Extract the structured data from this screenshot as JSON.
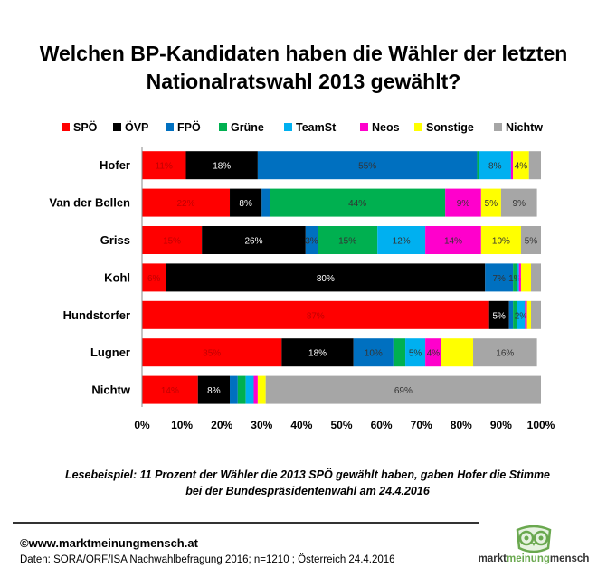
{
  "title_line1": "Welchen  BP-Kandidaten haben die Wähler der letzten",
  "title_line2": "Nationalratswahl 2013 gewählt?",
  "note_line1": "Lesebeispiel: 11 Prozent der Wähler die 2013 SPÖ gewählt haben, gaben  Hofer die Stimme",
  "note_line2": "bei der Bundespräsidentenwahl  am 24.4.2016",
  "footer": {
    "copyright": "©www.marktmeinungmensch.at",
    "source": "Daten: SORA/ORF/ISA Nachwahlbefragung 2016;  n=1210 ; Österreich 24.4.2016"
  },
  "logo": {
    "word1": "markt",
    "word2": "meinung",
    "word3": "mensch"
  },
  "colors": {
    "SPÖ": "#ff0000",
    "ÖVP": "#000000",
    "FPÖ": "#0070c0",
    "Grüne": "#00b050",
    "TeamSt": "#00b0f0",
    "Neos": "#ff00cc",
    "Sonstige": "#ffff00",
    "Nichtw": "#a6a6a6"
  },
  "chart_data": {
    "type": "bar",
    "orientation": "horizontal",
    "stacked": true,
    "title": "Welchen  BP-Kandidaten haben die Wähler der letzten Nationalratswahl 2013 gewählt?",
    "categories": [
      "Hofer",
      "Van der Bellen",
      "Griss",
      "Kohl",
      "Hundstorfer",
      "Lugner",
      "Nichtw"
    ],
    "x_ticks": [
      "0%",
      "10%",
      "20%",
      "30%",
      "40%",
      "50%",
      "60%",
      "70%",
      "80%",
      "90%",
      "100%"
    ],
    "xlim": [
      0,
      100
    ],
    "legend_position": "top",
    "series": [
      {
        "name": "SPÖ",
        "values": [
          11,
          22,
          15,
          6,
          87,
          35,
          14
        ],
        "labels": [
          "11%",
          "22%",
          "15%",
          "6%",
          "87%",
          "35%",
          "14%"
        ]
      },
      {
        "name": "ÖVP",
        "values": [
          18,
          8,
          26,
          80,
          5,
          18,
          8
        ],
        "labels": [
          "18%",
          "8%",
          "26%",
          "80%",
          "5%",
          "18%",
          "8%"
        ]
      },
      {
        "name": "FPÖ",
        "values": [
          55,
          2,
          3,
          7,
          1,
          10,
          2
        ],
        "labels": [
          "55%",
          "",
          "3%",
          "7%",
          "",
          "10%",
          ""
        ]
      },
      {
        "name": "Grüne",
        "values": [
          0.5,
          44,
          15,
          1,
          1,
          3,
          2
        ],
        "labels": [
          "",
          "44%",
          "15%",
          "1%",
          "",
          "",
          ""
        ]
      },
      {
        "name": "TeamSt",
        "values": [
          8,
          0,
          12,
          0.5,
          2,
          5,
          2
        ],
        "labels": [
          "8%",
          "",
          "12%",
          "",
          "2%",
          "5%",
          ""
        ]
      },
      {
        "name": "Neos",
        "values": [
          0.5,
          9,
          14,
          0.5,
          0.5,
          4,
          1
        ],
        "labels": [
          "",
          "9%",
          "14%",
          "",
          "",
          "4%",
          ""
        ]
      },
      {
        "name": "Sonstige",
        "values": [
          4,
          5,
          10,
          2.5,
          1,
          8,
          2
        ],
        "labels": [
          "4%",
          "5%",
          "10%",
          "",
          "",
          "",
          ""
        ]
      },
      {
        "name": "Nichtw",
        "values": [
          3,
          9,
          5,
          3,
          3,
          16,
          69
        ],
        "labels": [
          "",
          "9%",
          "5%",
          "",
          "",
          "16%",
          "69%"
        ]
      }
    ]
  }
}
